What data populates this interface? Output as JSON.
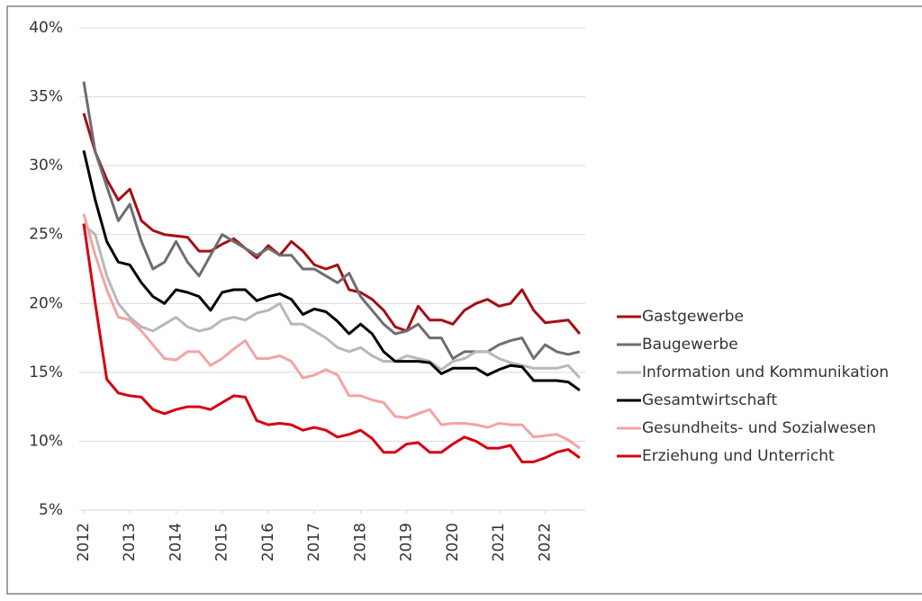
{
  "chart_data": {
    "type": "line",
    "x": [
      2012,
      2012.25,
      2012.5,
      2012.75,
      2013,
      2013.25,
      2013.5,
      2013.75,
      2014,
      2014.25,
      2014.5,
      2014.75,
      2015,
      2015.25,
      2015.5,
      2015.75,
      2016,
      2016.25,
      2016.5,
      2016.75,
      2017,
      2017.25,
      2017.5,
      2017.75,
      2018,
      2018.25,
      2018.5,
      2018.75,
      2019,
      2019.25,
      2019.5,
      2019.75,
      2020,
      2020.25,
      2020.5,
      2020.75,
      2021,
      2021.25,
      2021.5,
      2021.75,
      2022,
      2022.25,
      2022.5,
      2022.75
    ],
    "series": [
      {
        "name": "Gastgewerbe",
        "color": "#a50f15",
        "values": [
          33.8,
          31,
          29,
          27.5,
          28.3,
          26,
          25.3,
          25,
          24.9,
          24.8,
          23.8,
          23.8,
          24.3,
          24.7,
          24,
          23.3,
          24.2,
          23.5,
          24.5,
          23.8,
          22.8,
          22.5,
          22.8,
          21,
          20.8,
          20.3,
          19.5,
          18.3,
          18,
          19.8,
          18.8,
          18.8,
          18.5,
          19.5,
          20,
          20.3,
          19.8,
          20,
          21,
          19.5,
          18.6,
          18.7,
          18.8,
          17.8
        ]
      },
      {
        "name": "Baugewerbe",
        "color": "#6e6e6e",
        "values": [
          36.1,
          31,
          28.5,
          26,
          27.2,
          24.5,
          22.5,
          23,
          24.5,
          23,
          22,
          23.5,
          25,
          24.5,
          24,
          23.5,
          24,
          23.5,
          23.5,
          22.5,
          22.5,
          22,
          21.5,
          22.2,
          20.5,
          19.5,
          18.5,
          17.8,
          18,
          18.5,
          17.5,
          17.5,
          16,
          16.5,
          16.5,
          16.5,
          17,
          17.3,
          17.5,
          16,
          17,
          16.5,
          16.3,
          16.5
        ]
      },
      {
        "name": "Information und Kommunikation",
        "color": "#b8b8b8",
        "values": [
          25.7,
          25,
          22,
          20,
          19,
          18.3,
          18,
          18.5,
          19,
          18.3,
          18,
          18.2,
          18.8,
          19,
          18.8,
          19.3,
          19.5,
          20,
          18.5,
          18.5,
          18,
          17.5,
          16.8,
          16.5,
          16.8,
          16.2,
          15.8,
          15.8,
          16.2,
          16,
          15.8,
          15.2,
          15.8,
          16,
          16.5,
          16.5,
          16,
          15.7,
          15.5,
          15.3,
          15.3,
          15.3,
          15.5,
          14.6
        ]
      },
      {
        "name": "Gesamtwirtschaft",
        "color": "#000000",
        "values": [
          31.1,
          27.5,
          24.5,
          23,
          22.8,
          21.5,
          20.5,
          20,
          21,
          20.8,
          20.5,
          19.5,
          20.8,
          21,
          21,
          20.2,
          20.5,
          20.7,
          20.3,
          19.2,
          19.6,
          19.4,
          18.7,
          17.8,
          18.5,
          17.8,
          16.5,
          15.8,
          15.8,
          15.8,
          15.7,
          14.9,
          15.3,
          15.3,
          15.3,
          14.8,
          15.2,
          15.5,
          15.4,
          14.4,
          14.4,
          14.4,
          14.3,
          13.7
        ]
      },
      {
        "name": "Gesundheits- und Sozialwesen",
        "color": "#f4a3a3",
        "values": [
          26.5,
          23.5,
          21,
          19,
          18.8,
          18,
          17,
          16,
          15.9,
          16.5,
          16.5,
          15.5,
          16,
          16.7,
          17.3,
          16,
          16,
          16.2,
          15.8,
          14.6,
          14.8,
          15.2,
          14.8,
          13.3,
          13.3,
          13,
          12.8,
          11.8,
          11.7,
          12,
          12.3,
          11.2,
          11.3,
          11.3,
          11.2,
          11,
          11.3,
          11.2,
          11.2,
          10.3,
          10.4,
          10.5,
          10.1,
          9.5
        ]
      },
      {
        "name": "Erziehung und Unterricht",
        "color": "#d7000f",
        "values": [
          25.8,
          20,
          14.5,
          13.5,
          13.3,
          13.2,
          12.3,
          12,
          12.3,
          12.5,
          12.5,
          12.3,
          12.8,
          13.3,
          13.2,
          11.5,
          11.2,
          11.3,
          11.2,
          10.8,
          11,
          10.8,
          10.3,
          10.5,
          10.8,
          10.2,
          9.2,
          9.2,
          9.8,
          9.9,
          9.2,
          9.2,
          9.8,
          10.3,
          10,
          9.5,
          9.5,
          9.7,
          8.5,
          8.5,
          8.8,
          9.2,
          9.4,
          8.8
        ]
      }
    ],
    "xlim": [
      2012,
      2022.83
    ],
    "xticks": [
      2012,
      2013,
      2014,
      2015,
      2016,
      2017,
      2018,
      2019,
      2020,
      2021,
      2022
    ],
    "ylim": [
      5,
      40
    ],
    "yticks": [
      {
        "value": 5,
        "label": "5%"
      },
      {
        "value": 10,
        "label": "10%"
      },
      {
        "value": 15,
        "label": "15%"
      },
      {
        "value": 20,
        "label": "20%"
      },
      {
        "value": 25,
        "label": "25%"
      },
      {
        "value": 30,
        "label": "30%"
      },
      {
        "value": 35,
        "label": "35%"
      },
      {
        "value": 40,
        "label": "40%"
      }
    ],
    "grid": true,
    "legend": "right"
  }
}
